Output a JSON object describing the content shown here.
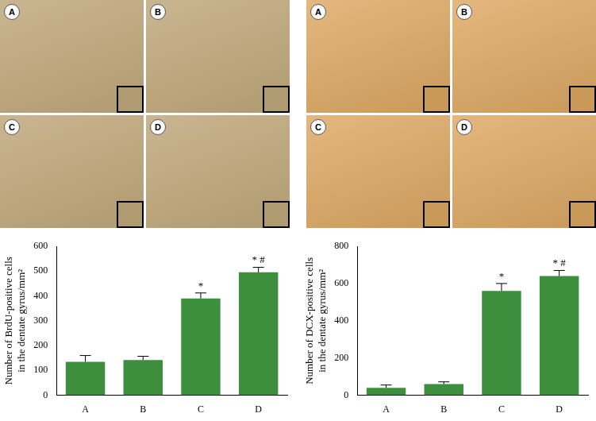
{
  "image_panels": [
    [
      "A",
      "B",
      "C",
      "D"
    ],
    [
      "A",
      "B",
      "C",
      "D"
    ]
  ],
  "chart_data": [
    {
      "type": "bar",
      "y_label": [
        "Number of BrdU-positive cells",
        "in the dentate gyrus/mm²"
      ],
      "categories": [
        "A",
        "B",
        "C",
        "D"
      ],
      "values": [
        135,
        142,
        390,
        495
      ],
      "error": [
        25,
        15,
        22,
        20
      ],
      "annotations": [
        {
          "category": "C",
          "text": "*"
        },
        {
          "category": "D",
          "text": "* #"
        }
      ],
      "color": "#3d8f3d",
      "ylim": [
        0,
        600
      ],
      "yticks": [
        0,
        100,
        200,
        300,
        400,
        500,
        600
      ],
      "grid": false
    },
    {
      "type": "bar",
      "y_label": [
        "Number of DCX-positive cells",
        "in the dentate gyrus/mm²"
      ],
      "categories": [
        "A",
        "B",
        "C",
        "D"
      ],
      "values": [
        40,
        60,
        560,
        640
      ],
      "error": [
        15,
        12,
        40,
        30
      ],
      "annotations": [
        {
          "category": "C",
          "text": "*"
        },
        {
          "category": "D",
          "text": "* #"
        }
      ],
      "color": "#3d8f3d",
      "ylim": [
        0,
        800
      ],
      "yticks": [
        0,
        200,
        400,
        600,
        800
      ],
      "grid": false
    }
  ]
}
